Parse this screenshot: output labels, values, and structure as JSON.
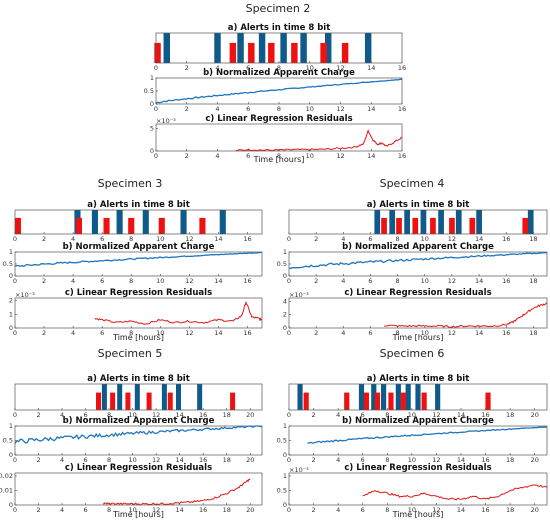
{
  "colors": {
    "blue": "#0e5a8a",
    "red": "#ee1111",
    "line": "#1f77c0",
    "resid": "#e01818"
  },
  "chart_data": [
    {
      "type": "bar",
      "specimen": "Specimen 2",
      "xmax": 16,
      "xticks": [
        0,
        2,
        4,
        6,
        8,
        10,
        12,
        14,
        16
      ],
      "xlabel": "Time [hours]",
      "panel_a": {
        "title": "a) Alerts in time 8 bit",
        "blue": [
          0.7,
          4.0,
          5.5,
          6.9,
          8.3,
          9.6,
          11.2,
          13.8
        ],
        "red": [
          0.1,
          5.0,
          6.2,
          7.5,
          9.0,
          10.9,
          12.3
        ]
      },
      "panel_b": {
        "title": "b) Normalized Apparent Charge",
        "yticks": [
          "0",
          "0.5",
          "1"
        ],
        "y0": 0.05,
        "y1": 0.95,
        "noise": 0.03,
        "start": 0
      },
      "panel_c": {
        "title": "c) Linear Regression Residuals",
        "yticks": [
          "0",
          "5"
        ],
        "exponent": "×10⁻³",
        "x": [
          5.2,
          6,
          7,
          8,
          9,
          10,
          11,
          12,
          13,
          13.5,
          13.8,
          14.1,
          14.4,
          14.7,
          15,
          15.5,
          16
        ],
        "y": [
          0.1,
          0.3,
          0.2,
          0.2,
          0.3,
          0.3,
          0.4,
          0.6,
          0.9,
          1.6,
          4.5,
          2.5,
          1.5,
          1.8,
          1.0,
          2.0,
          3.0
        ],
        "ymax": 6
      }
    },
    {
      "type": "bar",
      "specimen": "Specimen 3",
      "xmax": 17,
      "xticks": [
        0,
        2,
        4,
        6,
        8,
        10,
        12,
        14,
        16
      ],
      "xlabel": "Time [hours]",
      "panel_a": {
        "title": "a) Alerts in time 8 bit",
        "blue": [
          4.3,
          5.5,
          7.2,
          9.0,
          11.6,
          14.3
        ],
        "red": [
          0.2,
          4.4,
          6.3,
          8.0,
          10.1,
          12.9
        ]
      },
      "panel_b": {
        "title": "b) Normalized Apparent Charge",
        "yticks": [
          "0",
          "0.5",
          "1"
        ],
        "y0": 0.4,
        "y1": 0.98,
        "noise": 0.04,
        "start": 0
      },
      "panel_c": {
        "title": "c) Linear Regression Residuals",
        "yticks": [
          "0",
          "1",
          "2"
        ],
        "exponent": "×10⁻³",
        "x": [
          5.5,
          6,
          7,
          8,
          9,
          10,
          11,
          12,
          13,
          14,
          15,
          15.6,
          15.9,
          16.3,
          16.8,
          17
        ],
        "y": [
          0.7,
          0.6,
          0.4,
          0.5,
          0.3,
          0.6,
          0.4,
          0.5,
          0.4,
          0.6,
          0.5,
          0.9,
          1.9,
          0.8,
          0.7,
          0.6
        ],
        "ymax": 2.2
      }
    },
    {
      "type": "bar",
      "specimen": "Specimen 4",
      "xmax": 19,
      "xticks": [
        0,
        2,
        4,
        6,
        8,
        10,
        12,
        14,
        16,
        18
      ],
      "xlabel": "Time [hours]",
      "panel_a": {
        "title": "a) Alerts in time 8 bit",
        "blue": [
          6.5,
          7.6,
          8.7,
          9.9,
          11.2,
          12.5,
          14.0,
          17.8
        ],
        "red": [
          7.0,
          8.1,
          9.3,
          10.6,
          12.0,
          13.5,
          17.4
        ]
      },
      "panel_b": {
        "title": "b) Normalized Apparent Charge",
        "yticks": [
          "0",
          "0.5",
          "1"
        ],
        "y0": 0.35,
        "y1": 0.97,
        "noise": 0.06,
        "start": 0
      },
      "panel_c": {
        "title": "c) Linear Regression Residuals",
        "yticks": [
          "0",
          "2",
          "4"
        ],
        "exponent": "×10⁻³",
        "x": [
          7,
          8,
          9,
          10,
          11,
          12,
          13,
          14,
          15,
          16,
          16.5,
          17,
          17.5,
          18,
          18.5,
          19
        ],
        "y": [
          0.4,
          0.3,
          0.3,
          0.3,
          0.3,
          0.2,
          0.3,
          0.3,
          0.3,
          0.5,
          0.9,
          1.6,
          2.3,
          3.0,
          3.4,
          3.7
        ],
        "ymax": 4.5
      }
    },
    {
      "type": "bar",
      "specimen": "Specimen 5",
      "xmax": 21,
      "xticks": [
        0,
        2,
        4,
        6,
        8,
        10,
        12,
        14,
        16,
        18,
        20
      ],
      "xlabel": "Time [hours]",
      "panel_a": {
        "title": "a) Alerts in time 8 bit",
        "blue": [
          7.6,
          8.9,
          10.4,
          12.7,
          13.9,
          15.7
        ],
        "red": [
          7.1,
          8.3,
          9.6,
          11.4,
          13.2,
          18.5
        ]
      },
      "panel_b": {
        "title": "b) Normalized Apparent Charge",
        "yticks": [
          "0",
          "0.5",
          "1"
        ],
        "y0": 0.45,
        "y1": 1.0,
        "noise": 0.08,
        "start": 0
      },
      "panel_c": {
        "title": "c) Linear Regression Residuals",
        "yticks": [
          "0",
          "0.01",
          "0.02"
        ],
        "exponent": "",
        "x": [
          7.5,
          8,
          9,
          10,
          11,
          12,
          13,
          14,
          15,
          16,
          17,
          18,
          19,
          19.5,
          20
        ],
        "y": [
          0.001,
          0.001,
          0.0008,
          0.0008,
          0.0007,
          0.0008,
          0.001,
          0.0015,
          0.002,
          0.003,
          0.005,
          0.008,
          0.012,
          0.015,
          0.018
        ],
        "ymax": 0.022
      }
    },
    {
      "type": "bar",
      "specimen": "Specimen 6",
      "xmax": 21,
      "xticks": [
        0,
        2,
        4,
        6,
        8,
        10,
        12,
        14,
        16,
        18,
        20
      ],
      "xlabel": "Time [hours]",
      "panel_a": {
        "title": "a) Alerts in time 8 bit",
        "blue": [
          0.9,
          5.9,
          6.9,
          7.7,
          8.9,
          9.7,
          10.5,
          12.1
        ],
        "red": [
          1.4,
          4.7,
          6.3,
          7.2,
          8.3,
          9.3,
          11.0,
          16.2
        ]
      },
      "panel_b": {
        "title": "b) Normalized Apparent Charge",
        "yticks": [
          "0",
          "0.5",
          "1"
        ],
        "y0": 0.4,
        "y1": 0.97,
        "noise": 0.03,
        "start": 1.5
      },
      "panel_c": {
        "title": "c) Linear Regression Residuals",
        "yticks": [
          "0",
          "0.5",
          "1"
        ],
        "exponent": "×10⁻³",
        "x": [
          6,
          7,
          8,
          9,
          10,
          11,
          12,
          13,
          14,
          15,
          16,
          17,
          18,
          19,
          20,
          21
        ],
        "y": [
          0.3,
          0.5,
          0.4,
          0.3,
          0.3,
          0.4,
          0.3,
          0.2,
          0.2,
          0.3,
          0.2,
          0.3,
          0.5,
          0.6,
          0.7,
          0.6
        ],
        "ymax": 1.1
      }
    }
  ]
}
